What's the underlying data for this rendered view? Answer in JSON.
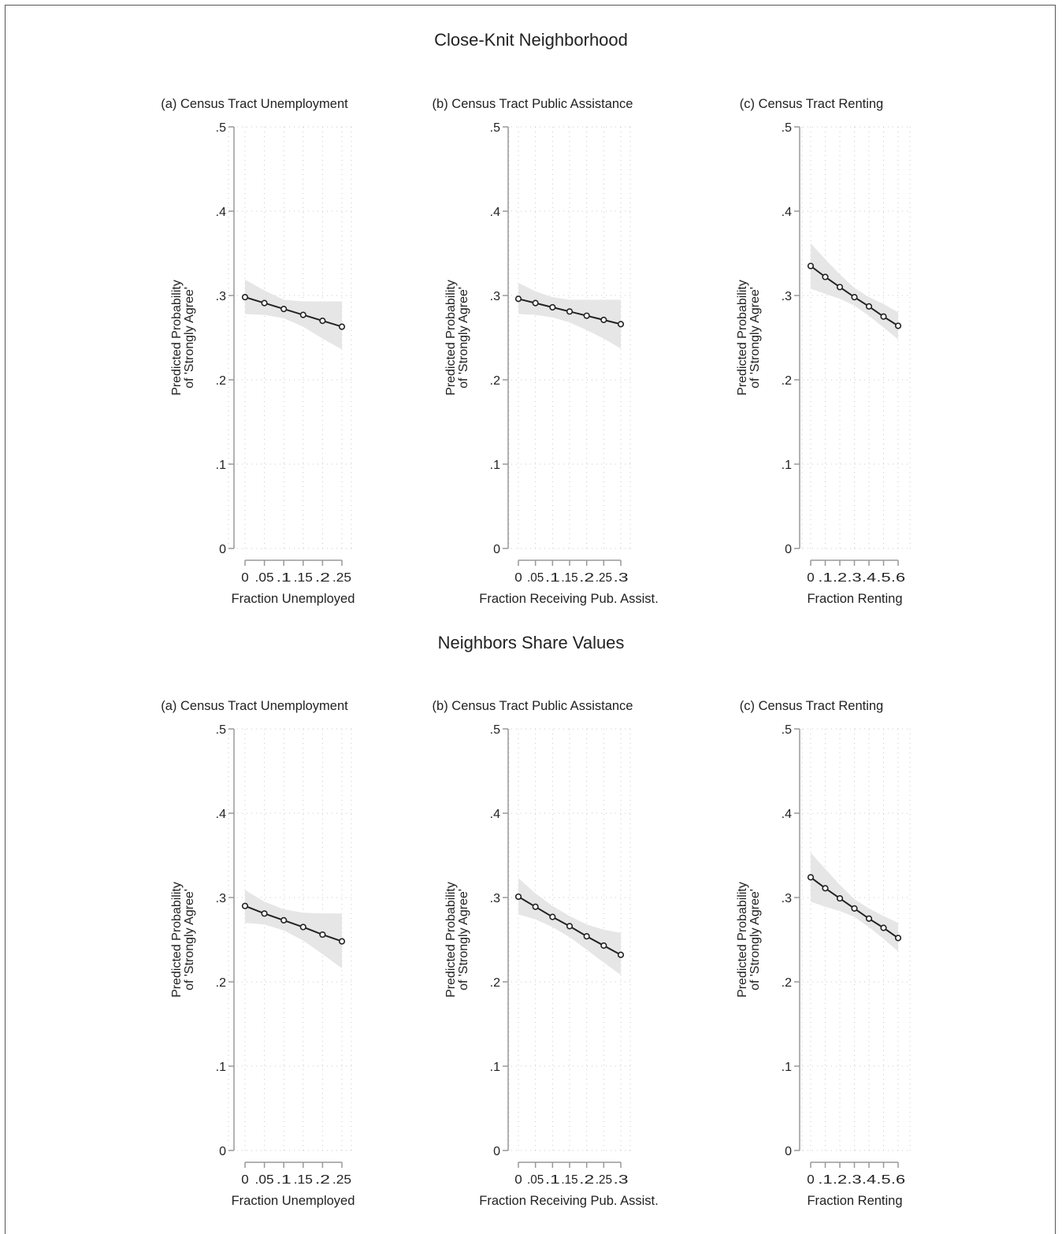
{
  "chart_data": [
    {
      "group": "Close-Knit Neighborhood",
      "panels": [
        {
          "type": "line",
          "subtitle": "(a) Census Tract Unemployment",
          "xlabel": "Fraction Unemployed",
          "ylabel": [
            "Predicted Probability",
            "of 'Strongly Agree'"
          ],
          "x": [
            0,
            0.05,
            0.1,
            0.15,
            0.2,
            0.25
          ],
          "xticks": [
            "0",
            ".05",
            ".1",
            ".15",
            ".2",
            ".25"
          ],
          "y": [
            0.298,
            0.291,
            0.284,
            0.277,
            0.27,
            0.263
          ],
          "ci_low": [
            0.278,
            0.277,
            0.273,
            0.263,
            0.249,
            0.236
          ],
          "ci_high": [
            0.319,
            0.306,
            0.295,
            0.293,
            0.293,
            0.293
          ],
          "xlim": [
            -0.028,
            0.275
          ],
          "ylim": [
            0,
            0.5
          ],
          "yticks": [
            0,
            0.1,
            0.2,
            0.3,
            0.4,
            0.5
          ],
          "yticklabels": [
            "0",
            ".1",
            ".2",
            ".3",
            ".4",
            ".5"
          ]
        },
        {
          "type": "line",
          "subtitle": "(b) Census Tract Public Assistance",
          "xlabel": "Fraction Receiving Pub. Assist.",
          "ylabel": [
            "Predicted Probability",
            "of 'Strongly Agree'"
          ],
          "x": [
            0,
            0.05,
            0.1,
            0.15,
            0.2,
            0.25,
            0.3
          ],
          "xticks": [
            "0",
            ".05",
            ".1",
            ".15",
            ".2",
            ".25",
            ".3"
          ],
          "y": [
            0.296,
            0.291,
            0.286,
            0.281,
            0.276,
            0.271,
            0.266
          ],
          "ci_low": [
            0.278,
            0.277,
            0.274,
            0.268,
            0.259,
            0.249,
            0.237
          ],
          "ci_high": [
            0.315,
            0.305,
            0.298,
            0.295,
            0.295,
            0.295,
            0.295
          ],
          "xlim": [
            -0.033,
            0.33
          ],
          "ylim": [
            0,
            0.5
          ],
          "yticks": [
            0,
            0.1,
            0.2,
            0.3,
            0.4,
            0.5
          ],
          "yticklabels": [
            "0",
            ".1",
            ".2",
            ".3",
            ".4",
            ".5"
          ]
        },
        {
          "type": "line",
          "subtitle": "(c) Census Tract Renting",
          "xlabel": "Fraction Renting",
          "ylabel": [
            "Predicted Probability",
            "of 'Strongly Agree'"
          ],
          "x": [
            0,
            0.1,
            0.2,
            0.3,
            0.4,
            0.5,
            0.6
          ],
          "xticks": [
            "0",
            ".1",
            ".2",
            ".3",
            ".4",
            ".5",
            ".6"
          ],
          "y": [
            0.335,
            0.322,
            0.31,
            0.298,
            0.287,
            0.275,
            0.264
          ],
          "ci_low": [
            0.308,
            0.302,
            0.296,
            0.288,
            0.276,
            0.262,
            0.248
          ],
          "ci_high": [
            0.362,
            0.343,
            0.325,
            0.309,
            0.298,
            0.29,
            0.28
          ],
          "xlim": [
            -0.08,
            0.68
          ],
          "ylim": [
            0,
            0.5
          ],
          "yticks": [
            0,
            0.1,
            0.2,
            0.3,
            0.4,
            0.5
          ],
          "yticklabels": [
            "0",
            ".1",
            ".2",
            ".3",
            ".4",
            ".5"
          ]
        }
      ]
    },
    {
      "group": "Neighbors Share Values",
      "panels": [
        {
          "type": "line",
          "subtitle": "(a) Census Tract Unemployment",
          "xlabel": "Fraction Unemployed",
          "ylabel": [
            "Predicted Probability",
            "of 'Strongly Agree'"
          ],
          "x": [
            0,
            0.05,
            0.1,
            0.15,
            0.2,
            0.25
          ],
          "xticks": [
            "0",
            ".05",
            ".1",
            ".15",
            ".2",
            ".25"
          ],
          "y": [
            0.29,
            0.281,
            0.273,
            0.265,
            0.256,
            0.248
          ],
          "ci_low": [
            0.27,
            0.268,
            0.261,
            0.249,
            0.233,
            0.216
          ],
          "ci_high": [
            0.309,
            0.295,
            0.286,
            0.282,
            0.281,
            0.281
          ],
          "xlim": [
            -0.028,
            0.275
          ],
          "ylim": [
            0,
            0.5
          ],
          "yticks": [
            0,
            0.1,
            0.2,
            0.3,
            0.4,
            0.5
          ],
          "yticklabels": [
            "0",
            ".1",
            ".2",
            ".3",
            ".4",
            ".5"
          ]
        },
        {
          "type": "line",
          "subtitle": "(b) Census Tract Public Assistance",
          "xlabel": "Fraction Receiving Pub. Assist.",
          "ylabel": [
            "Predicted Probability",
            "of 'Strongly Agree'"
          ],
          "x": [
            0,
            0.05,
            0.1,
            0.15,
            0.2,
            0.25,
            0.3
          ],
          "xticks": [
            "0",
            ".05",
            ".1",
            ".15",
            ".2",
            ".25",
            ".3"
          ],
          "y": [
            0.301,
            0.289,
            0.277,
            0.266,
            0.254,
            0.243,
            0.232
          ],
          "ci_low": [
            0.28,
            0.274,
            0.265,
            0.253,
            0.238,
            0.223,
            0.208
          ],
          "ci_high": [
            0.323,
            0.305,
            0.29,
            0.278,
            0.268,
            0.262,
            0.258
          ],
          "xlim": [
            -0.033,
            0.33
          ],
          "ylim": [
            0,
            0.5
          ],
          "yticks": [
            0,
            0.1,
            0.2,
            0.3,
            0.4,
            0.5
          ],
          "yticklabels": [
            "0",
            ".1",
            ".2",
            ".3",
            ".4",
            ".5"
          ]
        },
        {
          "type": "line",
          "subtitle": "(c) Census Tract Renting",
          "xlabel": "Fraction Renting",
          "ylabel": [
            "Predicted Probability",
            "of 'Strongly Agree'"
          ],
          "x": [
            0,
            0.1,
            0.2,
            0.3,
            0.4,
            0.5,
            0.6
          ],
          "xticks": [
            "0",
            ".1",
            ".2",
            ".3",
            ".4",
            ".5",
            ".6"
          ],
          "y": [
            0.324,
            0.311,
            0.299,
            0.287,
            0.275,
            0.264,
            0.252
          ],
          "ci_low": [
            0.295,
            0.289,
            0.284,
            0.277,
            0.265,
            0.251,
            0.236
          ],
          "ci_high": [
            0.353,
            0.334,
            0.315,
            0.298,
            0.287,
            0.278,
            0.27
          ],
          "xlim": [
            -0.08,
            0.68
          ],
          "ylim": [
            0,
            0.5
          ],
          "yticks": [
            0,
            0.1,
            0.2,
            0.3,
            0.4,
            0.5
          ],
          "yticklabels": [
            "0",
            ".1",
            ".2",
            ".3",
            ".4",
            ".5"
          ]
        }
      ]
    }
  ],
  "colors": {
    "line": "#222222",
    "ci_band": "#e6e6e6",
    "axis": "#999999",
    "grid": "#c8c8c8"
  }
}
